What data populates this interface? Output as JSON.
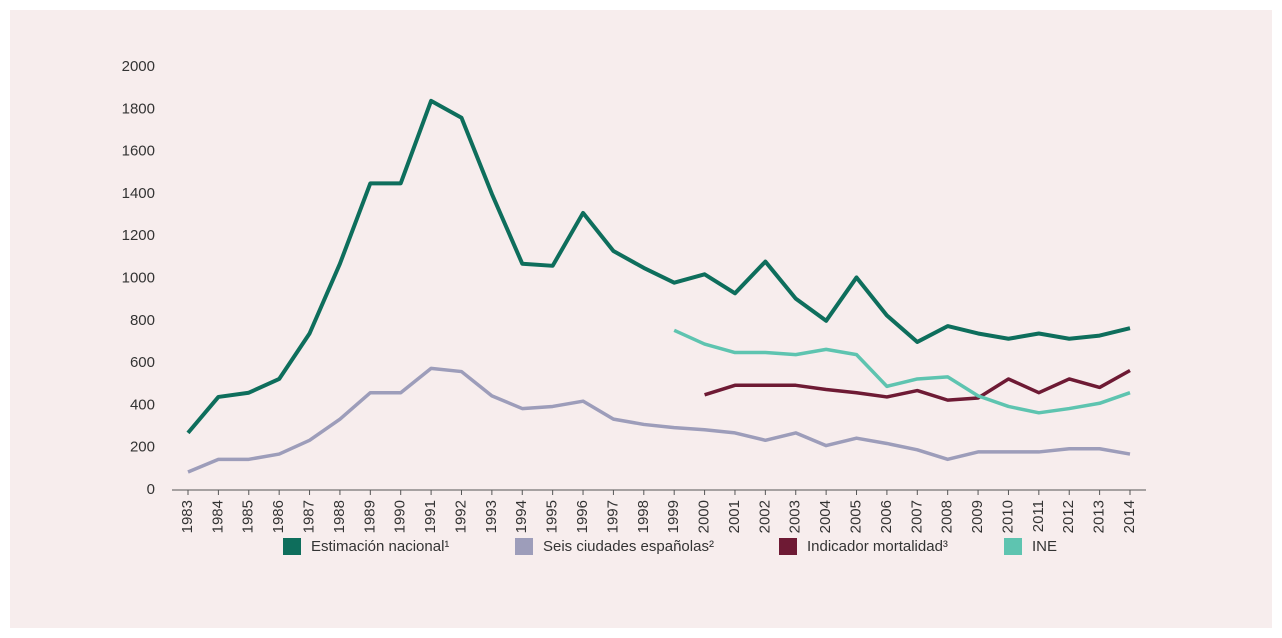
{
  "chart_data": {
    "type": "line",
    "categories": [
      "1983",
      "1984",
      "1985",
      "1986",
      "1987",
      "1988",
      "1989",
      "1990",
      "1991",
      "1992",
      "1993",
      "1994",
      "1995",
      "1996",
      "1997",
      "1998",
      "1999",
      "2000",
      "2001",
      "2002",
      "2003",
      "2004",
      "2005",
      "2006",
      "2007",
      "2008",
      "2009",
      "2010",
      "2011",
      "2012",
      "2013",
      "2014"
    ],
    "series": [
      {
        "name": "Estimación nacional¹",
        "color": "#0e6e5c",
        "values": [
          270,
          440,
          460,
          525,
          740,
          1070,
          1450,
          1450,
          1840,
          1760,
          1400,
          1070,
          1060,
          1310,
          1130,
          1050,
          980,
          1020,
          930,
          1080,
          905,
          800,
          1005,
          825,
          700,
          775,
          740,
          715,
          740,
          715,
          730,
          765
        ]
      },
      {
        "name": "Seis ciudades españolas²",
        "color": "#9d9dba",
        "values": [
          85,
          145,
          145,
          170,
          235,
          335,
          460,
          460,
          575,
          560,
          445,
          385,
          395,
          420,
          335,
          310,
          295,
          285,
          270,
          235,
          270,
          210,
          245,
          220,
          190,
          145,
          180,
          180,
          180,
          195,
          195,
          170
        ]
      },
      {
        "name": "Indicador mortalidad³",
        "color": "#6e1a34",
        "values": [
          null,
          null,
          null,
          null,
          null,
          null,
          null,
          null,
          null,
          null,
          null,
          null,
          null,
          null,
          null,
          null,
          null,
          450,
          495,
          495,
          495,
          475,
          460,
          440,
          470,
          425,
          435,
          525,
          460,
          525,
          485,
          565
        ]
      },
      {
        "name": "INE",
        "color": "#5ec4b0",
        "values": [
          null,
          null,
          null,
          null,
          null,
          null,
          null,
          null,
          null,
          null,
          null,
          null,
          null,
          null,
          null,
          null,
          755,
          690,
          650,
          650,
          640,
          665,
          640,
          490,
          525,
          535,
          445,
          395,
          365,
          385,
          410,
          460
        ]
      }
    ],
    "ylim": [
      0,
      2000
    ],
    "yticks": [
      0,
      200,
      400,
      600,
      800,
      1000,
      1200,
      1400,
      1600,
      1800,
      2000
    ],
    "grid": false
  }
}
